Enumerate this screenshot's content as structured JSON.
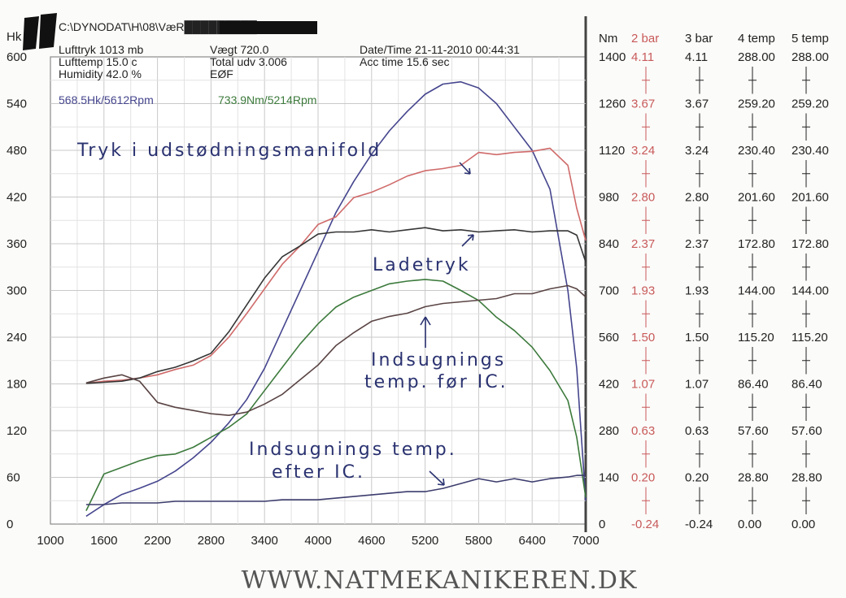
{
  "header": {
    "file_path": "C:\\DYNODAT\\H\\08\\VæR█████████-08.acc",
    "lufttryk": "Lufttryk  1013 mb",
    "lufttemp": "Lufttemp  15.0 c",
    "humidity": "Humidity  42.0 %",
    "vaegt": "Vægt     720.0",
    "total_udv": "Total udv 3.006",
    "eof": "EØF",
    "datetime": "Date/Time  21-11-2010 00:44:31",
    "acc_time": "Acc time  15.6 sec",
    "peak_hk": "568.5Hk/5612Rpm",
    "peak_nm": "733.9Nm/5214Rpm"
  },
  "annotations": {
    "exhaust": "Tryk i udstødningsmanifold",
    "boost": "Ladetryk",
    "intake_before_1": "Indsugnings",
    "intake_before_2": "temp. før IC.",
    "intake_after_1": "Indsugnings temp.",
    "intake_after_2": "efter IC."
  },
  "footer": {
    "website": "WWW.NATMEKANIKEREN.DK"
  },
  "colors": {
    "power": "#45458e",
    "torque": "#3c7a3c",
    "exhaust": "#d06a6a",
    "boost": "#353535",
    "intake_before": "#5a4444",
    "intake_after": "#3c3c6e",
    "grid": "#c9c9c9"
  },
  "chart_data": {
    "type": "line",
    "x": [
      1400,
      1600,
      1800,
      2000,
      2200,
      2400,
      2600,
      2800,
      3000,
      3200,
      3400,
      3600,
      3800,
      4000,
      4200,
      4400,
      4600,
      4800,
      5000,
      5200,
      5400,
      5600,
      5800,
      6000,
      6200,
      6400,
      6600,
      6800,
      6900,
      7000
    ],
    "xlabel": "",
    "xlim": [
      1000,
      7000
    ],
    "xticks": [
      "1000",
      "1600",
      "2200",
      "2800",
      "3400",
      "4000",
      "4600",
      "5200",
      "5800",
      "6400",
      "7000"
    ],
    "left_axis": {
      "label": "Hk",
      "range": [
        0,
        600
      ],
      "ticks": [
        "0",
        "60",
        "120",
        "180",
        "240",
        "300",
        "360",
        "420",
        "480",
        "540",
        "600"
      ]
    },
    "right_axes": [
      {
        "label": "Nm",
        "range": [
          0,
          1400
        ],
        "ticks": [
          "0",
          "140",
          "280",
          "420",
          "560",
          "700",
          "840",
          "980",
          "1120",
          "1260",
          "1400"
        ]
      },
      {
        "label": "2 bar",
        "range": [
          -0.24,
          4.11
        ],
        "ticks": [
          "-0.24",
          "0.20",
          "0.63",
          "1.07",
          "1.50",
          "1.93",
          "2.37",
          "2.80",
          "3.24",
          "3.67",
          "4.11"
        ]
      },
      {
        "label": "3 bar",
        "range": [
          -0.24,
          4.11
        ],
        "ticks": [
          "-0.24",
          "0.20",
          "0.63",
          "1.07",
          "1.50",
          "1.93",
          "2.37",
          "2.80",
          "3.24",
          "3.67",
          "4.11"
        ]
      },
      {
        "label": "4 temp",
        "range": [
          0,
          288
        ],
        "ticks": [
          "0.00",
          "28.80",
          "57.60",
          "86.40",
          "115.20",
          "144.00",
          "172.80",
          "201.60",
          "230.40",
          "259.20",
          "288.00"
        ]
      },
      {
        "label": "5 temp",
        "range": [
          0,
          288
        ],
        "ticks": [
          "0.00",
          "28.80",
          "57.60",
          "86.40",
          "115.20",
          "144.00",
          "172.80",
          "201.60",
          "230.40",
          "259.20",
          "288.00"
        ]
      }
    ],
    "series": [
      {
        "key": "power",
        "axis": "Hk",
        "values": [
          10,
          25,
          38,
          46,
          55,
          68,
          85,
          105,
          130,
          160,
          200,
          250,
          300,
          350,
          400,
          440,
          475,
          505,
          530,
          552,
          565,
          568,
          560,
          540,
          510,
          480,
          430,
          300,
          200,
          30
        ]
      },
      {
        "key": "torque",
        "axis": "Nm",
        "values": [
          40,
          150,
          170,
          190,
          205,
          210,
          230,
          260,
          290,
          330,
          400,
          470,
          540,
          600,
          650,
          680,
          700,
          720,
          728,
          733,
          728,
          700,
          670,
          620,
          580,
          530,
          460,
          370,
          260,
          80
        ]
      },
      {
        "key": "exhaust",
        "axis": "2 bar",
        "values": [
          1.07,
          1.09,
          1.1,
          1.12,
          1.15,
          1.2,
          1.24,
          1.33,
          1.5,
          1.72,
          1.95,
          2.18,
          2.35,
          2.55,
          2.62,
          2.8,
          2.85,
          2.92,
          3.0,
          3.05,
          3.07,
          3.1,
          3.22,
          3.2,
          3.22,
          3.23,
          3.26,
          3.1,
          2.7,
          2.4
        ]
      },
      {
        "key": "boost",
        "axis": "3 bar",
        "values": [
          1.07,
          1.08,
          1.09,
          1.12,
          1.18,
          1.22,
          1.28,
          1.35,
          1.55,
          1.8,
          2.05,
          2.25,
          2.35,
          2.46,
          2.48,
          2.48,
          2.5,
          2.48,
          2.5,
          2.52,
          2.49,
          2.5,
          2.48,
          2.49,
          2.5,
          2.48,
          2.49,
          2.49,
          2.45,
          2.2
        ]
      },
      {
        "key": "intake_before",
        "axis": "4 temp",
        "values": [
          87,
          90,
          92,
          88,
          75,
          72,
          70,
          68,
          67,
          69,
          74,
          80,
          89,
          98,
          110,
          118,
          125,
          128,
          130,
          134,
          136,
          137,
          138,
          139,
          142,
          142,
          145,
          147,
          145,
          140
        ]
      },
      {
        "key": "intake_after",
        "axis": "5 temp",
        "values": [
          12,
          12,
          13,
          13,
          13,
          14,
          14,
          14,
          14,
          14,
          14,
          15,
          15,
          15,
          16,
          17,
          18,
          19,
          20,
          20,
          22,
          25,
          28,
          26,
          28,
          26,
          28,
          29,
          30,
          30
        ]
      }
    ]
  }
}
